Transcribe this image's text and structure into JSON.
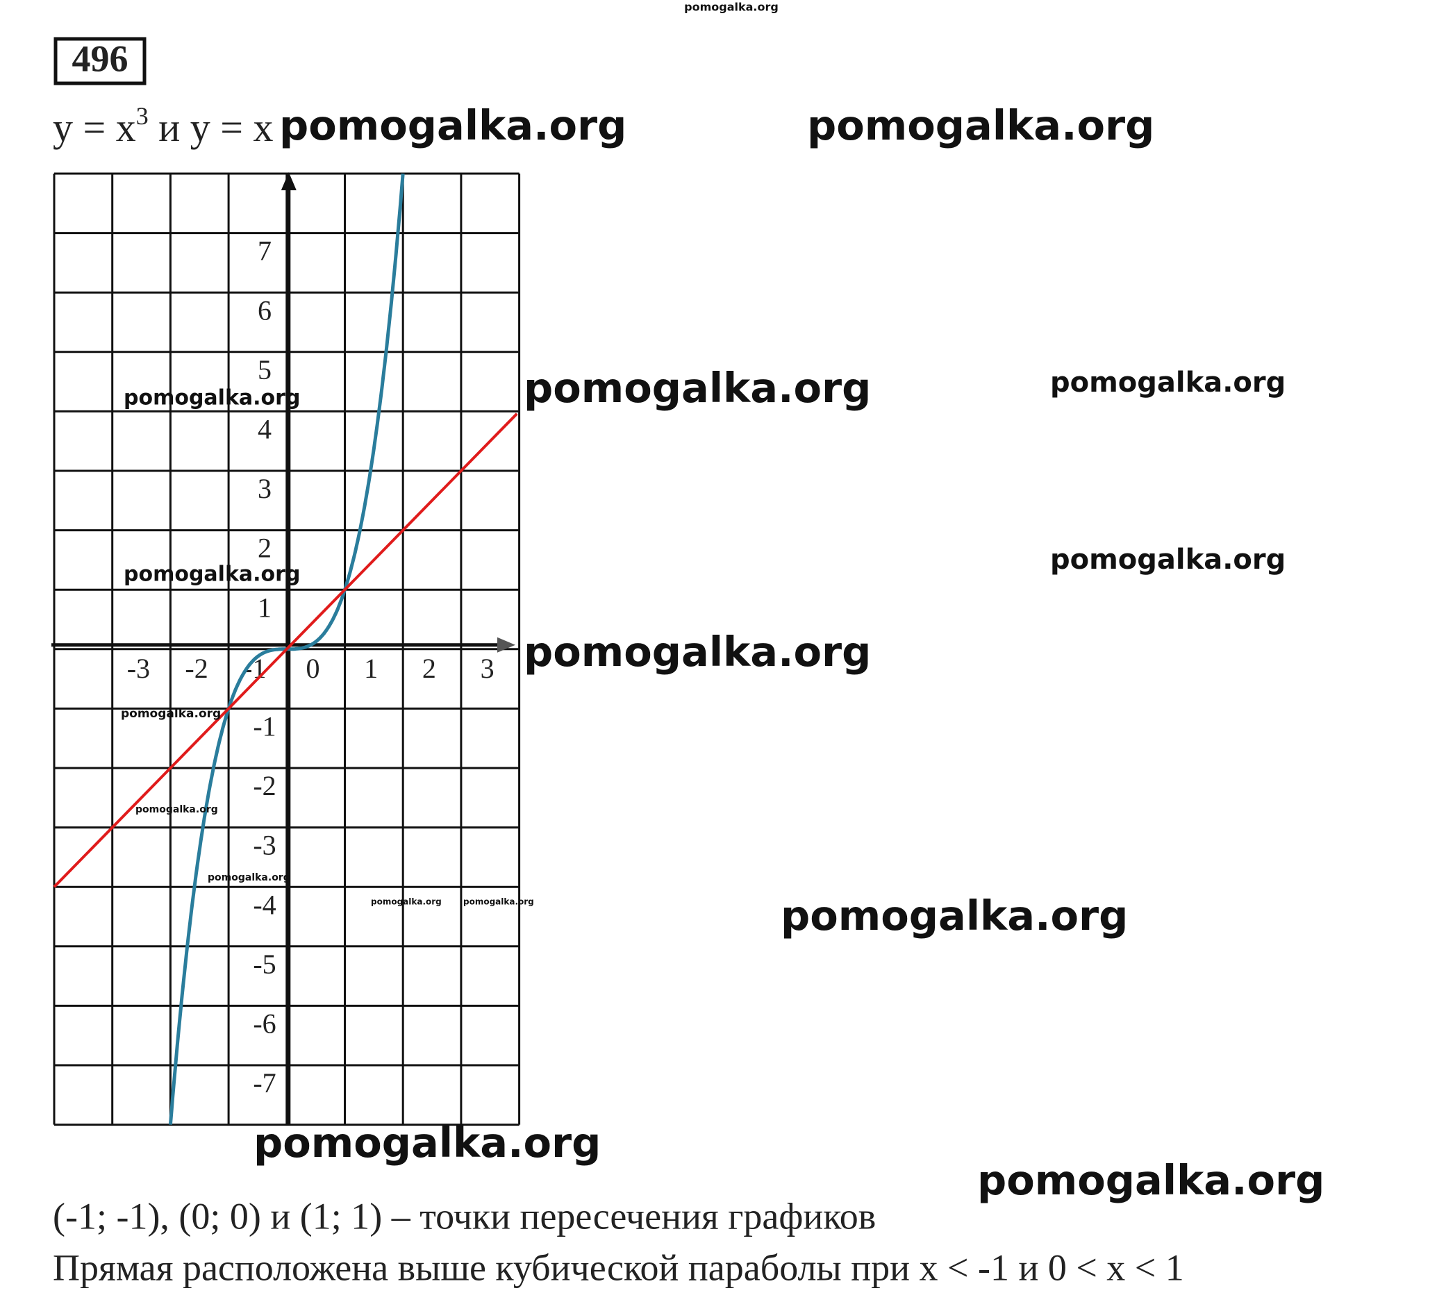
{
  "header": {
    "number": "496",
    "equation": [
      "y = x",
      "3",
      " и y = x"
    ]
  },
  "graph": {
    "xticks": [
      "-3",
      "-2",
      "-1",
      "0",
      "1",
      "2",
      "3"
    ],
    "yticks": [
      "7",
      "6",
      "5",
      "4",
      "3",
      "2",
      "1",
      "-1",
      "-2",
      "-3",
      "-4",
      "-5",
      "-6",
      "-7"
    ]
  },
  "answer": [
    "(-1; -1), (0; 0) и (1; 1) – точки пересечения графиков",
    "Прямая расположена выше кубической параболы при x < -1 и 0 < x < 1"
  ],
  "watermarks": [
    "pomogalka.org",
    "pomogalka.org",
    "pomogalka.org",
    "pomogalka.org",
    "pomogalka.org",
    "pomogalka.org",
    "pomogalka.org",
    "pomogalka.org",
    "pomogalka.org",
    "pomogalka.org",
    "pomogalka.org",
    "pomogalka.org",
    "pomogalka.org",
    "pomogalka.org",
    "pomogalka.org",
    "pomogalka.org",
    "pomogalka.org"
  ]
}
